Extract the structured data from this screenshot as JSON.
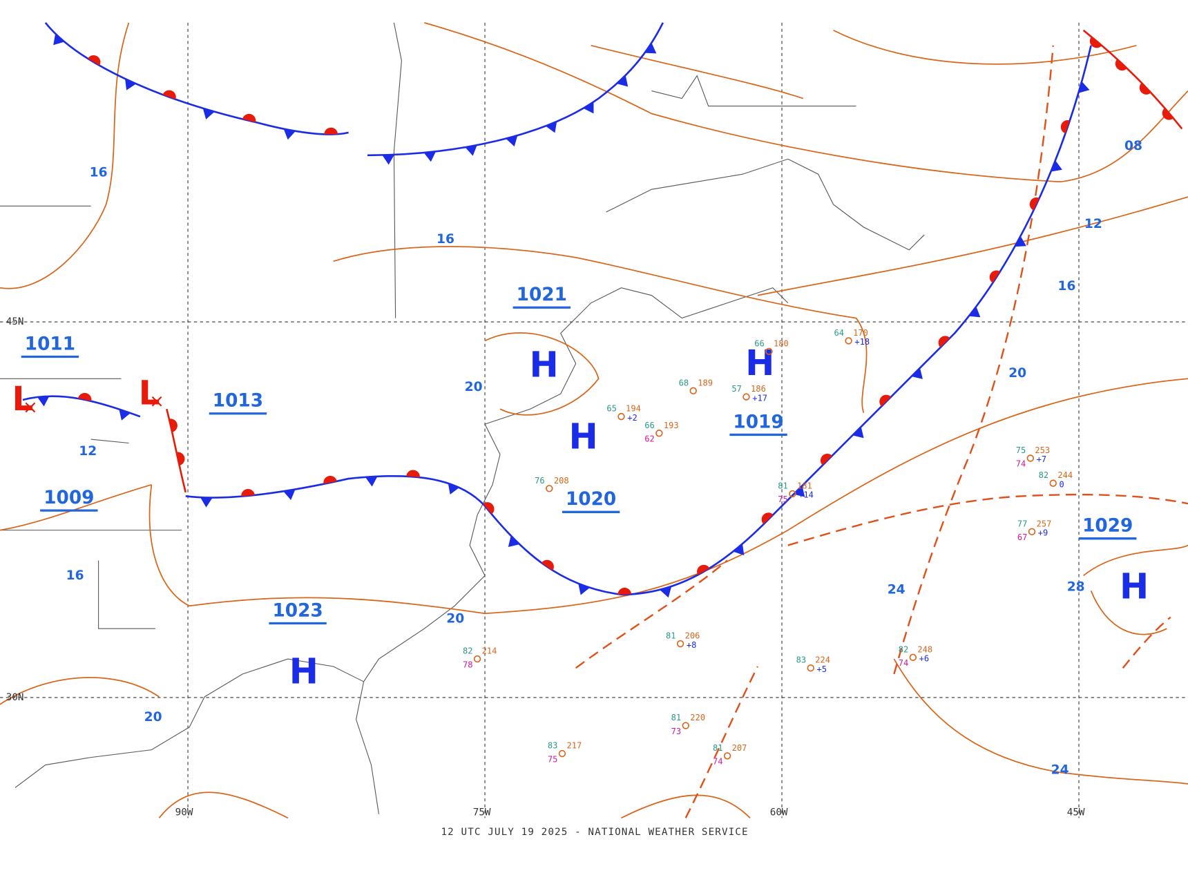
{
  "footer": "12 UTC JULY 19 2025 - NATIONAL WEATHER SERVICE",
  "latitude_labels": [
    "45N",
    "30N"
  ],
  "longitude_labels": [
    "90W",
    "75W",
    "60W",
    "45W"
  ],
  "highs": [
    {
      "letter": "H"
    },
    {
      "letter": "H"
    },
    {
      "letter": "H"
    },
    {
      "letter": "H"
    },
    {
      "letter": "H"
    }
  ],
  "lows": [
    {
      "letter": "L"
    },
    {
      "letter": "L"
    }
  ],
  "central_pressures": [
    "1021",
    "1019",
    "1020",
    "1023",
    "1029",
    "1011",
    "1013",
    "1009"
  ],
  "isobar_labels": [
    "16",
    "16",
    "16",
    "16",
    "12",
    "12",
    "08",
    "20",
    "20",
    "20",
    "20",
    "24",
    "24",
    "28"
  ],
  "stations": [
    {
      "temp": "76",
      "pressure": "208"
    },
    {
      "temp": "65",
      "pressure": "194",
      "tendency": "+2"
    },
    {
      "temp": "81",
      "pressure": "206",
      "tendency": "+8"
    },
    {
      "temp": "83",
      "pressure": "224",
      "tendency": "+5"
    },
    {
      "temp": "81",
      "pressure": "220",
      "dew": "73"
    },
    {
      "temp": "75",
      "pressure": "253",
      "tendency": "+7",
      "dew": "74"
    },
    {
      "temp": "82",
      "pressure": "244",
      "tendency": "0"
    },
    {
      "temp": "77",
      "pressure": "257",
      "tendency": "+9",
      "dew": "67"
    },
    {
      "temp": "82",
      "pressure": "248",
      "tendency": "+6",
      "dew": "74"
    },
    {
      "temp": "81",
      "pressure": "181",
      "tendency": "+14",
      "dew": "75"
    },
    {
      "temp": "66",
      "pressure": "180"
    },
    {
      "temp": "64",
      "pressure": "170",
      "tendency": "+18"
    },
    {
      "temp": "82",
      "pressure": "214",
      "dew": "78"
    },
    {
      "temp": "83",
      "pressure": "217",
      "dew": "75"
    },
    {
      "temp": "81",
      "pressure": "207",
      "dew": "74"
    },
    {
      "temp": "68",
      "pressure": "189"
    },
    {
      "temp": "57",
      "pressure": "186",
      "tendency": "+17"
    },
    {
      "temp": "66",
      "pressure": "193",
      "dew": "62"
    }
  ]
}
